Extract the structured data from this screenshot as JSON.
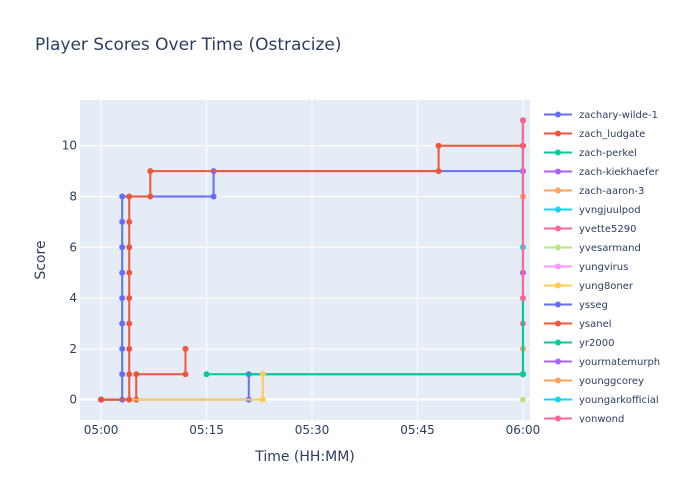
{
  "chart_data": {
    "type": "line",
    "line_shape": "step",
    "title": "Player Scores Over Time (Ostracize)",
    "xlabel": "Time (HH:MM)",
    "ylabel": "Score",
    "xlim": [
      "04:57",
      "06:01"
    ],
    "ylim": [
      -0.8,
      11.8
    ],
    "x_ticks": [
      "05:00",
      "05:15",
      "05:30",
      "05:45",
      "06:00"
    ],
    "y_ticks": [
      0,
      2,
      4,
      6,
      8,
      10
    ],
    "grid": true,
    "legend_position": "right",
    "series": [
      {
        "name": "zachary-wilde-1",
        "color": "#636efa",
        "points": [
          [
            "05:00",
            0
          ],
          [
            "05:21",
            0
          ],
          [
            "05:21",
            1
          ],
          [
            "06:00",
            1
          ],
          [
            "06:00",
            11
          ]
        ]
      },
      {
        "name": "zach_ludgate",
        "color": "#ef553b",
        "points": [
          [
            "05:00",
            0
          ],
          [
            "05:05",
            0
          ],
          [
            "05:05",
            1
          ],
          [
            "05:12",
            1
          ],
          [
            "05:12",
            2
          ]
        ]
      },
      {
        "name": "zach-perkel",
        "color": "#00cc96",
        "points": [
          [
            "05:15",
            1
          ],
          [
            "06:00",
            1
          ],
          [
            "06:00",
            11
          ]
        ]
      },
      {
        "name": "zach-kiekhaefer",
        "color": "#ab63fa",
        "points": [
          [
            "06:00",
            5
          ],
          [
            "06:00",
            11
          ]
        ]
      },
      {
        "name": "zach-aaron-3",
        "color": "#ffa15a",
        "points": [
          [
            "06:00",
            2
          ],
          [
            "06:00",
            11
          ]
        ]
      },
      {
        "name": "yvngjuulpod",
        "color": "#19d3f3",
        "points": [
          [
            "06:00",
            6
          ],
          [
            "06:00",
            11
          ]
        ]
      },
      {
        "name": "yvette5290",
        "color": "#ff6692",
        "points": [
          [
            "06:00",
            3
          ],
          [
            "06:00",
            11
          ]
        ]
      },
      {
        "name": "yvesarmand",
        "color": "#b6e880",
        "points": [
          [
            "06:00",
            0
          ]
        ]
      },
      {
        "name": "yungvirus",
        "color": "#ff97ff",
        "points": [
          [
            "06:00",
            10
          ],
          [
            "06:00",
            11
          ]
        ]
      },
      {
        "name": "yung8oner",
        "color": "#fecb52",
        "points": [
          [
            "05:00",
            0
          ],
          [
            "05:23",
            0
          ],
          [
            "05:23",
            1
          ]
        ]
      },
      {
        "name": "ysseg",
        "color": "#636efa",
        "points": [
          [
            "05:00",
            0
          ],
          [
            "05:03",
            0
          ],
          [
            "05:03",
            1
          ],
          [
            "05:03",
            2
          ],
          [
            "05:03",
            3
          ],
          [
            "05:03",
            4
          ],
          [
            "05:03",
            5
          ],
          [
            "05:03",
            6
          ],
          [
            "05:03",
            7
          ],
          [
            "05:03",
            8
          ],
          [
            "05:16",
            8
          ],
          [
            "05:16",
            9
          ],
          [
            "06:00",
            9
          ],
          [
            "06:00",
            11
          ]
        ]
      },
      {
        "name": "ysanel",
        "color": "#ef553b",
        "points": [
          [
            "05:00",
            0
          ],
          [
            "05:04",
            0
          ],
          [
            "05:04",
            1
          ],
          [
            "05:04",
            2
          ],
          [
            "05:04",
            3
          ],
          [
            "05:04",
            4
          ],
          [
            "05:04",
            5
          ],
          [
            "05:04",
            6
          ],
          [
            "05:04",
            7
          ],
          [
            "05:04",
            8
          ],
          [
            "05:07",
            8
          ],
          [
            "05:07",
            9
          ],
          [
            "05:48",
            9
          ],
          [
            "05:48",
            10
          ],
          [
            "06:00",
            10
          ],
          [
            "06:00",
            11
          ]
        ]
      },
      {
        "name": "yr2000",
        "color": "#00cc96",
        "points": [
          [
            "06:00",
            1
          ],
          [
            "06:00",
            11
          ]
        ]
      },
      {
        "name": "yourmatemurph",
        "color": "#ab63fa",
        "points": [
          [
            "06:00",
            9
          ],
          [
            "06:00",
            11
          ]
        ]
      },
      {
        "name": "younggcorey",
        "color": "#ffa15a",
        "points": [
          [
            "06:00",
            8
          ],
          [
            "06:00",
            11
          ]
        ]
      },
      {
        "name": "youngarkofficial",
        "color": "#19d3f3",
        "points": [
          [
            "06:00",
            6
          ],
          [
            "06:00",
            11
          ]
        ]
      },
      {
        "name": "yonwond",
        "color": "#ff6692",
        "points": [
          [
            "06:00",
            4
          ],
          [
            "06:00",
            11
          ]
        ]
      }
    ]
  }
}
